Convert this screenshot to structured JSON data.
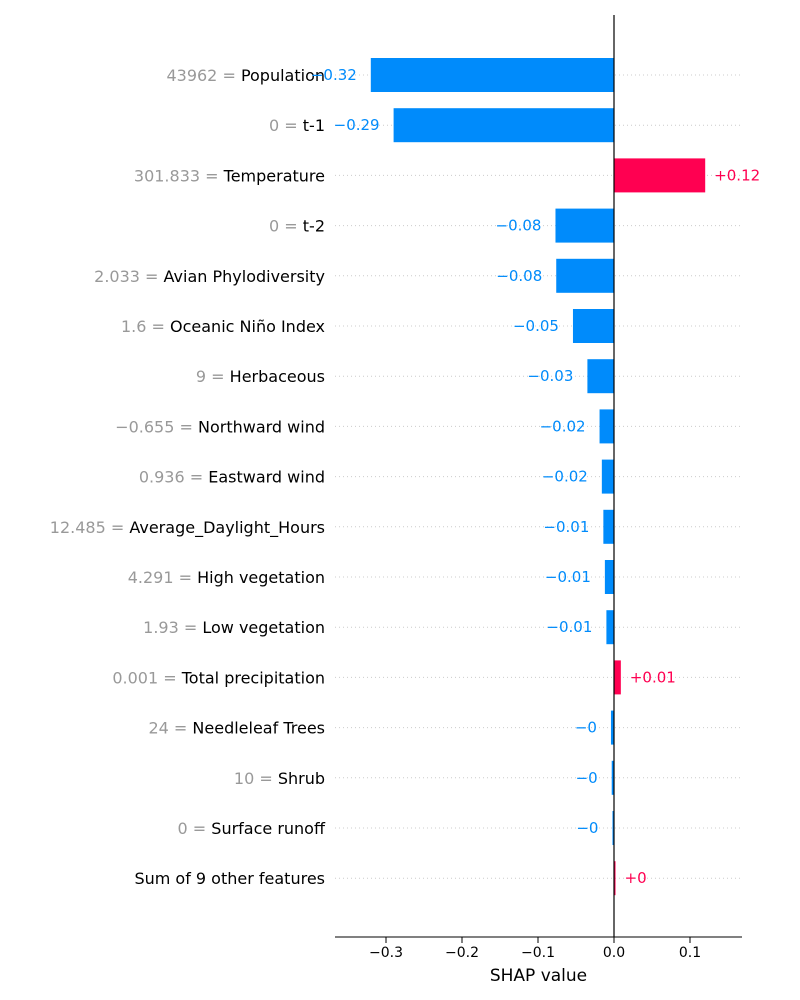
{
  "chart_data": {
    "type": "bar",
    "orientation": "horizontal",
    "xlabel": "SHAP value",
    "xlim": [
      -0.36,
      0.167
    ],
    "xticks": [
      -0.3,
      -0.2,
      -0.1,
      0.0,
      0.1
    ],
    "xtick_labels": [
      "−0.3",
      "−0.2",
      "−0.1",
      "0.0",
      "0.1"
    ],
    "grid": "dotted horizontal per row",
    "colors": {
      "positive": "#ff0051",
      "negative": "#008bfb",
      "feature_value": "#999999",
      "feature_name": "#000000"
    },
    "features": [
      {
        "value": "43962",
        "name": "Population",
        "shap": -0.32,
        "label": "−0.32"
      },
      {
        "value": "0",
        "name": "t-1",
        "shap": -0.29,
        "label": "−0.29"
      },
      {
        "value": "301.833",
        "name": "Temperature",
        "shap": 0.12,
        "label": "+0.12"
      },
      {
        "value": "0",
        "name": "t-2",
        "shap": -0.077,
        "label": "−0.08"
      },
      {
        "value": "2.033",
        "name": "Avian Phylodiversity",
        "shap": -0.076,
        "label": "−0.08"
      },
      {
        "value": "1.6",
        "name": "Oceanic Niño Index",
        "shap": -0.054,
        "label": "−0.05"
      },
      {
        "value": "9",
        "name": "Herbaceous",
        "shap": -0.035,
        "label": "−0.03"
      },
      {
        "value": "−0.655",
        "name": "Northward wind",
        "shap": -0.019,
        "label": "−0.02"
      },
      {
        "value": "0.936",
        "name": "Eastward wind",
        "shap": -0.016,
        "label": "−0.02"
      },
      {
        "value": "12.485",
        "name": "Average_Daylight_Hours",
        "shap": -0.014,
        "label": "−0.01"
      },
      {
        "value": "4.291",
        "name": "High vegetation",
        "shap": -0.012,
        "label": "−0.01"
      },
      {
        "value": "1.93",
        "name": "Low vegetation",
        "shap": -0.01,
        "label": "−0.01"
      },
      {
        "value": "0.001",
        "name": "Total precipitation",
        "shap": 0.009,
        "label": "+0.01"
      },
      {
        "value": "24",
        "name": "Needleleaf Trees",
        "shap": -0.004,
        "label": "−0"
      },
      {
        "value": "10",
        "name": "Shrub",
        "shap": -0.003,
        "label": "−0"
      },
      {
        "value": "0",
        "name": "Surface runoff",
        "shap": -0.002,
        "label": "−0"
      },
      {
        "value": "",
        "name": "Sum of 9 other features",
        "shap": 0.002,
        "label": "+0"
      }
    ]
  }
}
